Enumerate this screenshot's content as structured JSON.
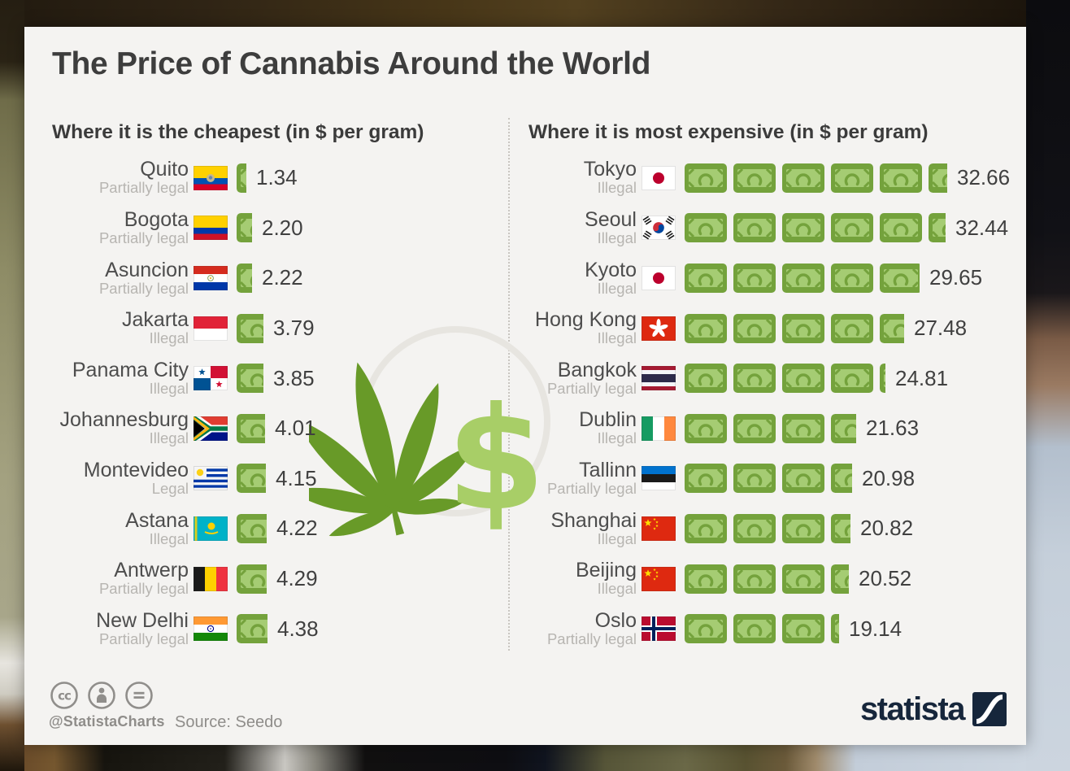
{
  "infographic": {
    "title": "The Price of Cannabis Around the World",
    "footer": {
      "license_handle": "@StatistaCharts",
      "source": "Source: Seedo",
      "brand": "statista"
    }
  },
  "icons": {
    "dollar_glyph": "$",
    "cc_glyph": "cc"
  },
  "colors": {
    "card_background": "#f4f3f1",
    "banknote_dark": "#74a23c",
    "banknote_light": "#a5cc73",
    "leaf_green": "#689a28",
    "dollar_green": "#a8ce67",
    "text_dark": "#3d3d3d",
    "text_muted": "#b7b5b1",
    "brand_navy": "#16263b",
    "footer_grey": "#8f8d8a"
  },
  "chart_data": {
    "type": "pictogram-bar",
    "title": "The Price of Cannabis Around the World",
    "unit": "$ per gram",
    "dollars_per_banknote": 6,
    "source": "Seedo",
    "legend_position": "none",
    "sections": [
      {
        "id": "cheapest",
        "title": "Where it is the cheapest (in $ per gram)",
        "rows": [
          {
            "city": "Quito",
            "status": "Partially legal",
            "flag": "ecuador",
            "value": 1.34,
            "label": "1.34"
          },
          {
            "city": "Bogota",
            "status": "Partially legal",
            "flag": "colombia",
            "value": 2.2,
            "label": "2.20"
          },
          {
            "city": "Asuncion",
            "status": "Partially legal",
            "flag": "paraguay",
            "value": 2.22,
            "label": "2.22"
          },
          {
            "city": "Jakarta",
            "status": "Illegal",
            "flag": "indonesia",
            "value": 3.79,
            "label": "3.79"
          },
          {
            "city": "Panama City",
            "status": "Illegal",
            "flag": "panama",
            "value": 3.85,
            "label": "3.85"
          },
          {
            "city": "Johannesburg",
            "status": "Illegal",
            "flag": "south-africa",
            "value": 4.01,
            "label": "4.01"
          },
          {
            "city": "Montevideo",
            "status": "Legal",
            "flag": "uruguay",
            "value": 4.15,
            "label": "4.15"
          },
          {
            "city": "Astana",
            "status": "Illegal",
            "flag": "kazakhstan",
            "value": 4.22,
            "label": "4.22"
          },
          {
            "city": "Antwerp",
            "status": "Partially legal",
            "flag": "belgium",
            "value": 4.29,
            "label": "4.29"
          },
          {
            "city": "New Delhi",
            "status": "Partially legal",
            "flag": "india",
            "value": 4.38,
            "label": "4.38"
          }
        ]
      },
      {
        "id": "most-expensive",
        "title": "Where it is most expensive (in $ per gram)",
        "rows": [
          {
            "city": "Tokyo",
            "status": "Illegal",
            "flag": "japan",
            "value": 32.66,
            "label": "32.66"
          },
          {
            "city": "Seoul",
            "status": "Illegal",
            "flag": "south-korea",
            "value": 32.44,
            "label": "32.44"
          },
          {
            "city": "Kyoto",
            "status": "Illegal",
            "flag": "japan",
            "value": 29.65,
            "label": "29.65"
          },
          {
            "city": "Hong Kong",
            "status": "Illegal",
            "flag": "hong-kong",
            "value": 27.48,
            "label": "27.48"
          },
          {
            "city": "Bangkok",
            "status": "Partially legal",
            "flag": "thailand",
            "value": 24.81,
            "label": "24.81"
          },
          {
            "city": "Dublin",
            "status": "Illegal",
            "flag": "ireland",
            "value": 21.63,
            "label": "21.63"
          },
          {
            "city": "Tallinn",
            "status": "Partially legal",
            "flag": "estonia",
            "value": 20.98,
            "label": "20.98"
          },
          {
            "city": "Shanghai",
            "status": "Illegal",
            "flag": "china",
            "value": 20.82,
            "label": "20.82"
          },
          {
            "city": "Beijing",
            "status": "Illegal",
            "flag": "china",
            "value": 20.52,
            "label": "20.52"
          },
          {
            "city": "Oslo",
            "status": "Partially legal",
            "flag": "norway",
            "value": 19.14,
            "label": "19.14"
          }
        ]
      }
    ]
  }
}
